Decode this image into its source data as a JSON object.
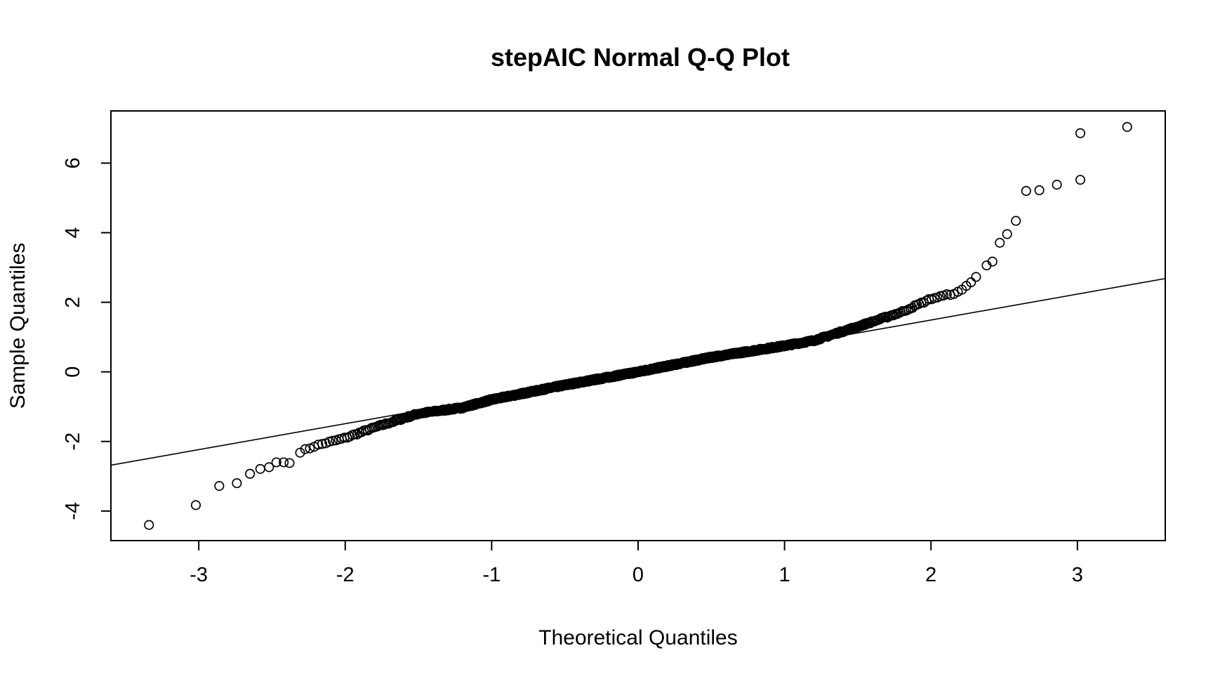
{
  "chart_data": {
    "type": "scatter",
    "title": "stepAIC Normal Q-Q Plot",
    "xlabel": "Theoretical Quantiles",
    "ylabel": "Sample Quantiles",
    "xlim": [
      -3.6,
      3.6
    ],
    "ylim": [
      -4.85,
      7.5
    ],
    "x_ticks": [
      -3,
      -2,
      -1,
      0,
      1,
      2,
      3
    ],
    "y_ticks": [
      -4,
      -2,
      0,
      2,
      4,
      6
    ],
    "grid": false,
    "legend": "none",
    "reference_line": {
      "intercept": 0,
      "slope": 0.745
    },
    "n_points": 1000,
    "outlier_points": [
      {
        "x": -3.34,
        "y": -4.4
      },
      {
        "x": -3.02,
        "y": -3.83
      },
      {
        "x": -2.86,
        "y": -3.28
      },
      {
        "x": -2.74,
        "y": -3.2
      },
      {
        "x": -2.65,
        "y": -2.93
      },
      {
        "x": -2.58,
        "y": -2.79
      },
      {
        "x": -2.52,
        "y": -2.74
      },
      {
        "x": -2.47,
        "y": -2.6
      },
      {
        "x": -2.42,
        "y": -2.6
      },
      {
        "x": -2.38,
        "y": -2.62
      },
      {
        "x": 2.38,
        "y": 3.06
      },
      {
        "x": 2.42,
        "y": 3.17
      },
      {
        "x": 2.47,
        "y": 3.71
      },
      {
        "x": 2.52,
        "y": 3.96
      },
      {
        "x": 2.58,
        "y": 4.34
      },
      {
        "x": 2.65,
        "y": 5.2
      },
      {
        "x": 2.74,
        "y": 5.22
      },
      {
        "x": 2.86,
        "y": 5.38
      },
      {
        "x": 3.02,
        "y": 5.52
      },
      {
        "x": 3.02,
        "y": 6.86
      },
      {
        "x": 3.34,
        "y": 7.04
      }
    ],
    "body_curve_knots": [
      {
        "x": -2.4,
        "y": -2.45
      },
      {
        "x": -2.2,
        "y": -2.12
      },
      {
        "x": -2.0,
        "y": -1.9
      },
      {
        "x": -1.8,
        "y": -1.6
      },
      {
        "x": -1.5,
        "y": -1.2
      },
      {
        "x": -1.2,
        "y": -1.03
      },
      {
        "x": -1.0,
        "y": -0.8
      },
      {
        "x": -0.5,
        "y": -0.38
      },
      {
        "x": 0.0,
        "y": 0.0
      },
      {
        "x": 0.5,
        "y": 0.42
      },
      {
        "x": 1.0,
        "y": 0.75
      },
      {
        "x": 1.2,
        "y": 0.9
      },
      {
        "x": 1.5,
        "y": 1.3
      },
      {
        "x": 1.8,
        "y": 1.72
      },
      {
        "x": 2.0,
        "y": 2.1
      },
      {
        "x": 2.1,
        "y": 2.2
      },
      {
        "x": 2.2,
        "y": 2.3
      },
      {
        "x": 2.3,
        "y": 2.7
      },
      {
        "x": 2.4,
        "y": 3.05
      }
    ]
  }
}
